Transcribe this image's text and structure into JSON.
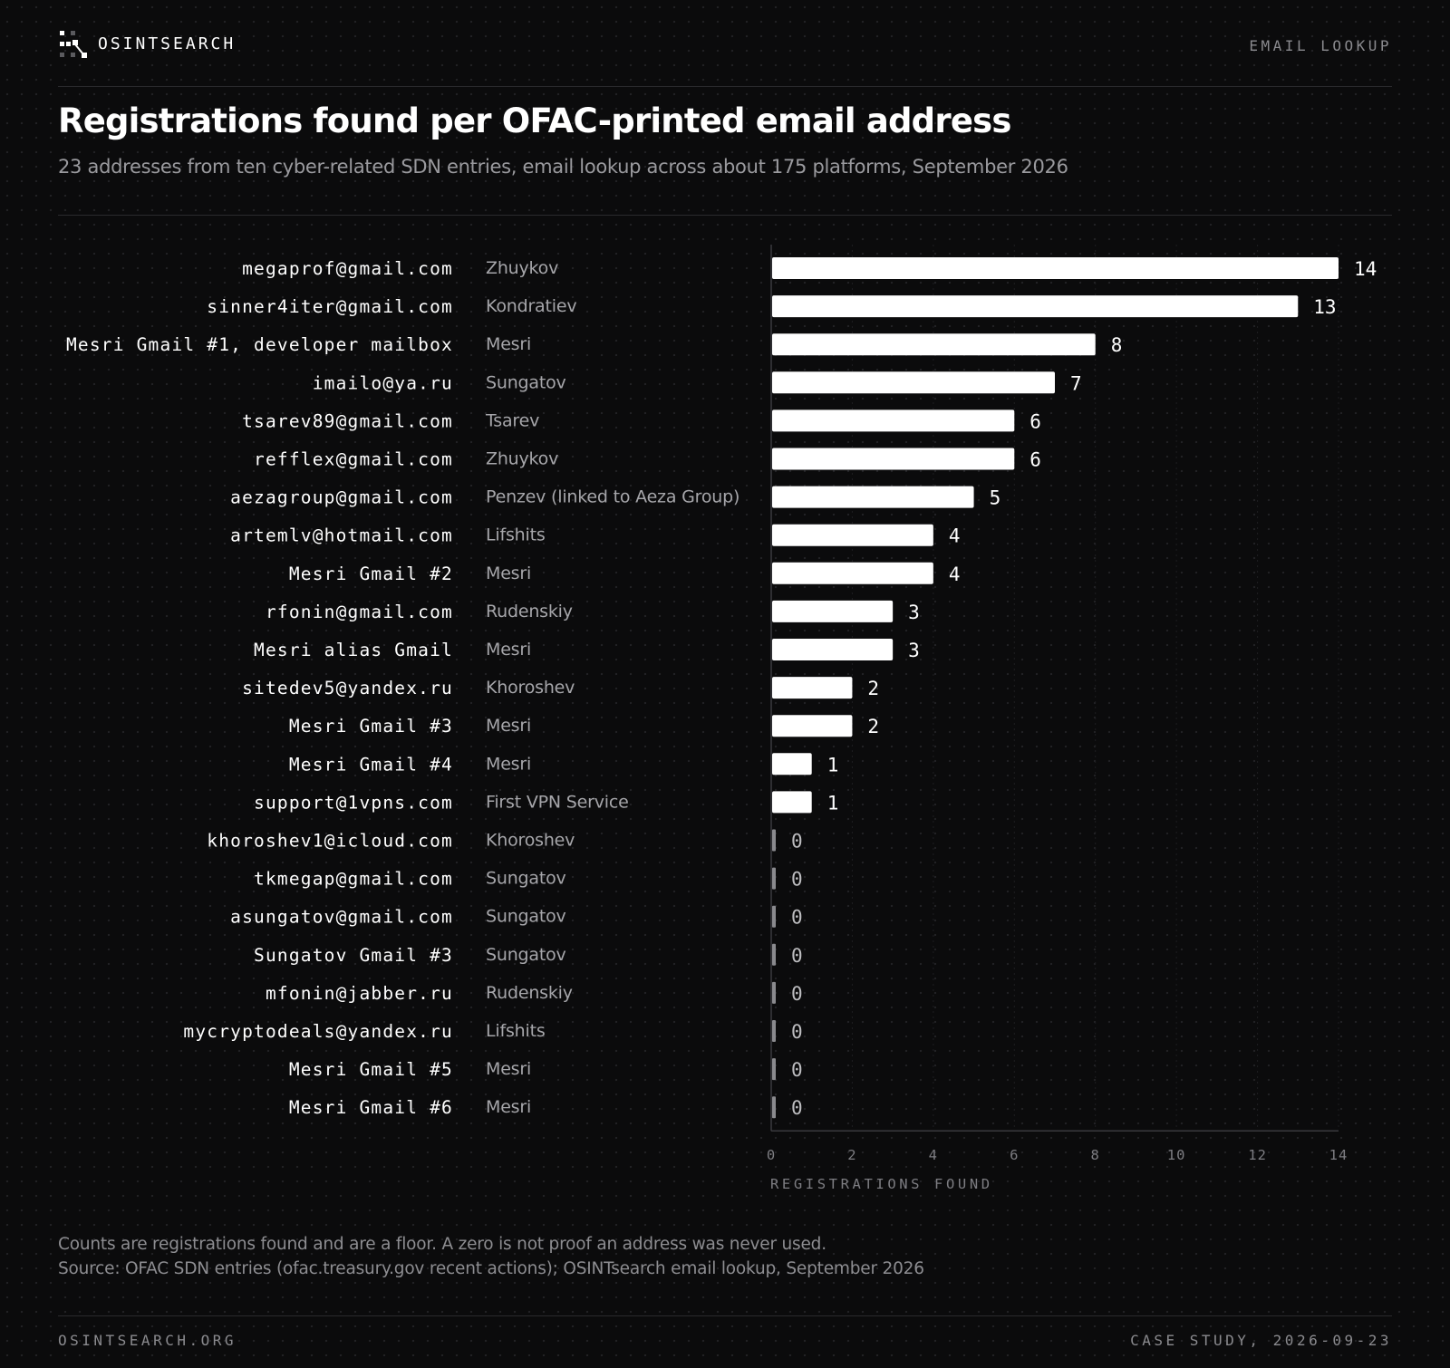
{
  "header": {
    "brand": "OSINTSEARCH",
    "section": "EMAIL LOOKUP",
    "logo_icon": "dotted-network-logo-icon"
  },
  "chart_data": {
    "type": "bar",
    "orientation": "horizontal",
    "title": "Registrations found per OFAC-printed email address",
    "subtitle": "23 addresses from ten cyber-related SDN entries, email lookup across about 175 platforms, September 2026",
    "xlabel": "REGISTRATIONS FOUND",
    "ylabel": "",
    "xlim": [
      0,
      14
    ],
    "xticks": [
      0,
      2,
      4,
      6,
      8,
      10,
      12,
      14
    ],
    "grid": true,
    "legend": "none",
    "categories": [
      "megaprof@gmail.com",
      "sinner4iter@gmail.com",
      "Mesri Gmail #1, developer mailbox",
      "imailo@ya.ru",
      "tsarev89@gmail.com",
      "refflex@gmail.com",
      "aezagroup@gmail.com",
      "artemlv@hotmail.com",
      "Mesri Gmail #2",
      "rfonin@gmail.com",
      "Mesri alias Gmail",
      "sitedev5@yandex.ru",
      "Mesri Gmail #3",
      "Mesri Gmail #4",
      "support@1vpns.com",
      "khoroshev1@icloud.com",
      "tkmegap@gmail.com",
      "asungatov@gmail.com",
      "Sungatov Gmail #3",
      "mfonin@jabber.ru",
      "mycryptodeals@yandex.ru",
      "Mesri Gmail #5",
      "Mesri Gmail #6"
    ],
    "entities": [
      "Zhuykov",
      "Kondratiev",
      "Mesri",
      "Sungatov",
      "Tsarev",
      "Zhuykov",
      "Penzev (linked to Aeza Group)",
      "Lifshits",
      "Mesri",
      "Rudenskiy",
      "Mesri",
      "Khoroshev",
      "Mesri",
      "Mesri",
      "First VPN Service",
      "Khoroshev",
      "Sungatov",
      "Sungatov",
      "Sungatov",
      "Rudenskiy",
      "Lifshits",
      "Mesri",
      "Mesri"
    ],
    "values": [
      14,
      13,
      8,
      7,
      6,
      6,
      5,
      4,
      4,
      3,
      3,
      2,
      2,
      1,
      1,
      0,
      0,
      0,
      0,
      0,
      0,
      0,
      0
    ],
    "colors": {
      "bar": "#ffffff",
      "zero_bar": "#8a8a8e",
      "value_label": "#ffffff",
      "zero_label": "#bdbdc0",
      "email_label": "#ffffff",
      "entity_label": "#a6a6aa",
      "axis": "#3a3a3e",
      "grid": "#1e1e21",
      "tick_label": "#7d7d82"
    }
  },
  "notes": {
    "line1": "Counts are registrations found and are a floor. A zero is not proof an address was never used.",
    "line2": "Source: OFAC SDN entries (ofac.treasury.gov recent actions); OSINTsearch email lookup, September 2026"
  },
  "footer": {
    "left": "OSINTSEARCH.ORG",
    "right": "CASE STUDY, 2026-09-23"
  },
  "colors": {
    "background": "#0b0b0c",
    "rule": "#2a2a2d",
    "muted": "#8a8a8e"
  }
}
